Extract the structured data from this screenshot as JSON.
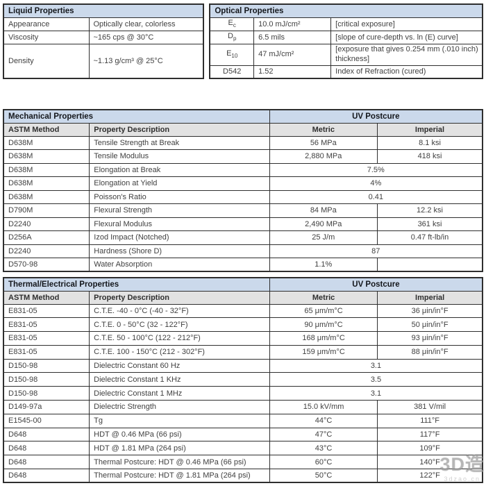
{
  "colors": {
    "section_header_bg": "#cbd9eb",
    "subheader_bg": "#e2e2e2",
    "border": "#2e2e2e",
    "body_text": "#404040",
    "header_text": "#14171c"
  },
  "liquid": {
    "title": "Liquid Properties",
    "rows": [
      {
        "label": "Appearance",
        "value": "Optically clear, colorless"
      },
      {
        "label": "Viscosity",
        "value": "~165 cps @ 30°C"
      },
      {
        "label": "Density",
        "value": "~1.13 g/cm³ @ 25°C"
      }
    ]
  },
  "optical": {
    "title": "Optical Properties",
    "rows": [
      {
        "symbol": "E",
        "sub": "c",
        "value": "10.0 mJ/cm²",
        "desc": "[critical exposure]"
      },
      {
        "symbol": "D",
        "sub": "p",
        "value": "6.5 mils",
        "desc": "[slope of cure-depth vs. ln (E) curve]"
      },
      {
        "symbol": "E",
        "sub": "10",
        "value": "47 mJ/cm²",
        "desc": "[exposure that gives 0.254 mm (.010 inch) thickness]"
      },
      {
        "symbol": "D542",
        "sub": "",
        "value": "1.52",
        "desc": "Index of Refraction (cured)"
      }
    ]
  },
  "mechanical": {
    "title": "Mechanical Properties",
    "postcure_label": "UV Postcure",
    "columns": [
      "ASTM Method",
      "Property Description",
      "Metric",
      "Imperial"
    ],
    "rows": [
      {
        "method": "D638M",
        "desc": "Tensile Strength at Break",
        "metric": "56 MPa",
        "imperial": "8.1 ksi"
      },
      {
        "method": "D638M",
        "desc": "Tensile Modulus",
        "metric": "2,880 MPa",
        "imperial": "418 ksi"
      },
      {
        "method": "D638M",
        "desc": "Elongation at Break",
        "span": "7.5%"
      },
      {
        "method": "D638M",
        "desc": "Elongation at Yield",
        "span": "4%"
      },
      {
        "method": "D638M",
        "desc": "Poisson's Ratio",
        "span": "0.41"
      },
      {
        "method": "D790M",
        "desc": "Flexural Strength",
        "metric": "84 MPa",
        "imperial": "12.2 ksi"
      },
      {
        "method": "D2240",
        "desc": "Flexural Modulus",
        "metric": "2,490 MPa",
        "imperial": "361 ksi"
      },
      {
        "method": "D256A",
        "desc": "Izod Impact (Notched)",
        "metric": "25 J/m",
        "imperial": "0.47 ft-lb/in"
      },
      {
        "method": "D2240",
        "desc": "Hardness (Shore D)",
        "span": "87"
      },
      {
        "method": "D570-98",
        "desc": "Water Absorption",
        "metric": "1.1%",
        "imperial": ""
      }
    ]
  },
  "thermal": {
    "title": "Thermal/Electrical Properties",
    "postcure_label": "UV Postcure",
    "columns": [
      "ASTM Method",
      "Property Description",
      "Metric",
      "Imperial"
    ],
    "rows": [
      {
        "method": "E831-05",
        "desc": "C.T.E. -40 - 0°C (-40 - 32°F)",
        "metric": "65 μm/m°C",
        "imperial": "36 μin/in°F"
      },
      {
        "method": "E831-05",
        "desc": "C.T.E. 0 - 50°C (32 - 122°F)",
        "metric": "90 μm/m°C",
        "imperial": "50 μin/in°F"
      },
      {
        "method": "E831-05",
        "desc": "C.T.E. 50 - 100°C (122 - 212°F)",
        "metric": "168 μm/m°C",
        "imperial": "93 μin/in°F"
      },
      {
        "method": "E831-05",
        "desc": "C.T.E. 100 - 150°C (212 - 302°F)",
        "metric": "159 μm/m°C",
        "imperial": "88 μin/in°F"
      },
      {
        "method": "D150-98",
        "desc": "Dielectric Constant 60 Hz",
        "span": "3.1"
      },
      {
        "method": "D150-98",
        "desc": "Dielectric Constant 1 KHz",
        "span": "3.5"
      },
      {
        "method": "D150-98",
        "desc": "Dielectric Constant 1 MHz",
        "span": "3.1"
      },
      {
        "method": "D149-97a",
        "desc": "Dielectric Strength",
        "metric": "15.0 kV/mm",
        "imperial": "381 V/mil"
      },
      {
        "method": "E1545-00",
        "desc": "Tg",
        "metric": "44°C",
        "imperial": "111°F"
      },
      {
        "method": "D648",
        "desc": "HDT @ 0.46 MPa (66 psi)",
        "metric": "47°C",
        "imperial": "117°F"
      },
      {
        "method": "D648",
        "desc": "HDT @ 1.81 MPa (264 psi)",
        "metric": "43°C",
        "imperial": "109°F"
      },
      {
        "method": "D648",
        "desc": "Thermal Postcure: HDT @ 0.46 MPa (66 psi)",
        "metric": "60°C",
        "imperial": "140°F"
      },
      {
        "method": "D648",
        "desc": "Thermal Postcure: HDT @ 1.81 MPa (264 psi)",
        "metric": "50°C",
        "imperial": "122°F"
      }
    ]
  },
  "watermark": {
    "logo": "3D造",
    "url": "3dzao.cn"
  }
}
